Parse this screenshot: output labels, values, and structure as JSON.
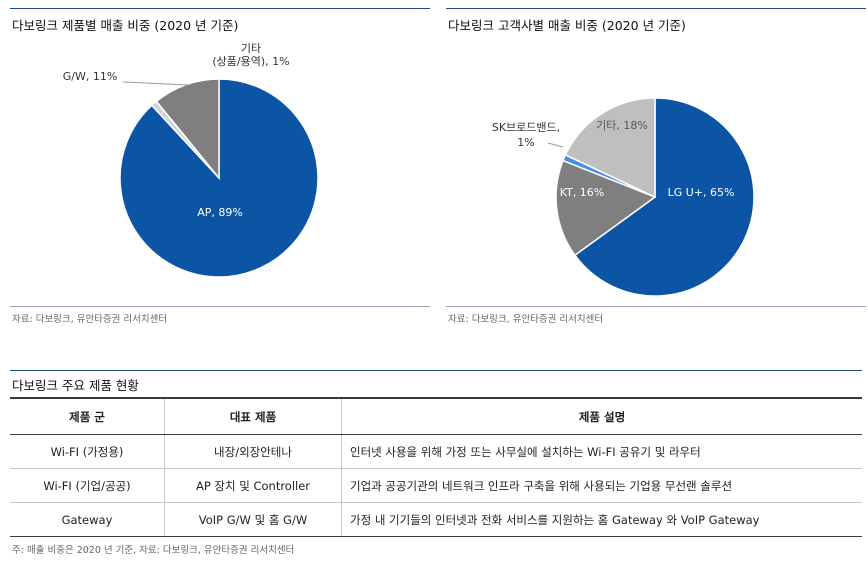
{
  "left_chart": {
    "title": "다보링크 제품별 매출 비중 (2020 년 기준)",
    "source": "자료: 다보링크, 유안타증권 리서치센터"
  },
  "right_chart": {
    "title": "다보링크 고객사별 매출 비중 (2020 년 기준)",
    "source": "자료: 다보링크, 유안타증권 리서치센터"
  },
  "chart_data": [
    {
      "type": "pie",
      "title": "다보링크 제품별 매출 비중 (2020 년 기준)",
      "slices": [
        {
          "label": "AP",
          "value": 89,
          "text": "AP, 89%",
          "color": "#0b55a4",
          "label_color": "#ffffff"
        },
        {
          "label": "기타 (상품/용역)",
          "value": 1,
          "text": [
            "기타",
            "(상품/용역), 1%"
          ],
          "color": "#cdd5e0",
          "label_color": "#333333"
        },
        {
          "label": "G/W",
          "value": 11,
          "text": "G/W, 11%",
          "color": "#7f7f7f",
          "label_color": "#333333"
        }
      ]
    },
    {
      "type": "pie",
      "title": "다보링크 고객사별 매출 비중 (2020 년 기준)",
      "slices": [
        {
          "label": "LG U+",
          "value": 65,
          "text": "LG U+, 65%",
          "color": "#0b55a4",
          "label_color": "#ffffff"
        },
        {
          "label": "KT",
          "value": 16,
          "text": "KT, 16%",
          "color": "#7f7f7f",
          "label_color": "#ffffff"
        },
        {
          "label": "SK브로드밴드",
          "value": 1,
          "text": [
            "SK브로드밴드,",
            "1%"
          ],
          "color": "#4a90e2",
          "label_color": "#333333"
        },
        {
          "label": "기타",
          "value": 18,
          "text": "기타, 18%",
          "color": "#bfbfbf",
          "label_color": "#555555"
        }
      ]
    }
  ],
  "product_table": {
    "title": "다보링크 주요 제품 현황",
    "headers": [
      "제품 군",
      "대표 제품",
      "제품 설명"
    ],
    "rows": [
      [
        "Wi-FI (가정용)",
        "내장/외장안테나",
        "인터넷 사용을 위해 가정 또는 사무실에 설치하는 Wi-FI 공유기 및 라우터"
      ],
      [
        "Wi-FI (기업/공공)",
        "AP 장치 및 Controller",
        "기업과 공공기관의 네트워크 인프라 구축을 위해 사용되는 기업용 무선랜 솔루션"
      ],
      [
        "Gateway",
        "VoIP G/W 및 홈 G/W",
        "가정 내 기기들의 인터넷과 전화 서비스를 지원하는 홈 Gateway 와 VoIP Gateway"
      ]
    ],
    "footnote": "주: 매출 비중은 2020 년 기준, 자료: 다보링크, 유안타증권 리서치센터"
  }
}
